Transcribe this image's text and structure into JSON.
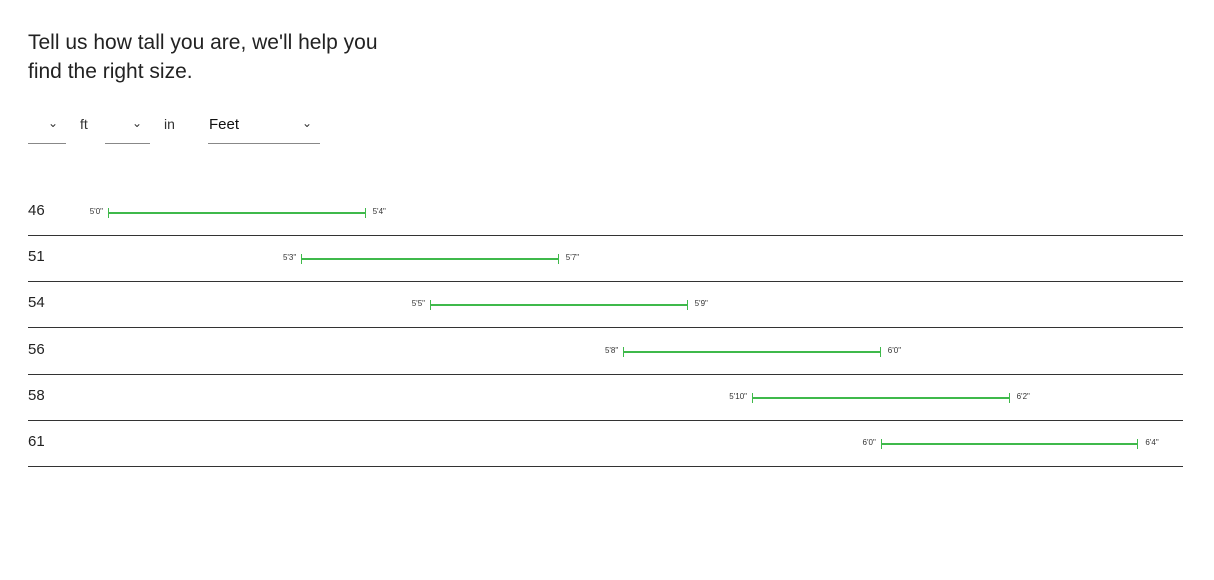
{
  "heading": "Tell us how tall you are, we'll help you find the right size.",
  "inputs": {
    "feet_value": "",
    "feet_unit": "ft",
    "inches_value": "",
    "inches_unit": "in",
    "unit_select": "Feet"
  },
  "accent_color": "#3fb94b",
  "sizes": [
    {
      "size": "46",
      "min": "5'0\"",
      "max": "5'4\"",
      "min_in": 60,
      "max_in": 64
    },
    {
      "size": "51",
      "min": "5'3\"",
      "max": "5'7\"",
      "min_in": 63,
      "max_in": 67
    },
    {
      "size": "54",
      "min": "5'5\"",
      "max": "5'9\"",
      "min_in": 65,
      "max_in": 69
    },
    {
      "size": "56",
      "min": "5'8\"",
      "max": "6'0\"",
      "min_in": 68,
      "max_in": 72
    },
    {
      "size": "58",
      "min": "5'10\"",
      "max": "6'2\"",
      "min_in": 70,
      "max_in": 74
    },
    {
      "size": "61",
      "min": "6'0\"",
      "max": "6'4\"",
      "min_in": 72,
      "max_in": 76
    }
  ]
}
